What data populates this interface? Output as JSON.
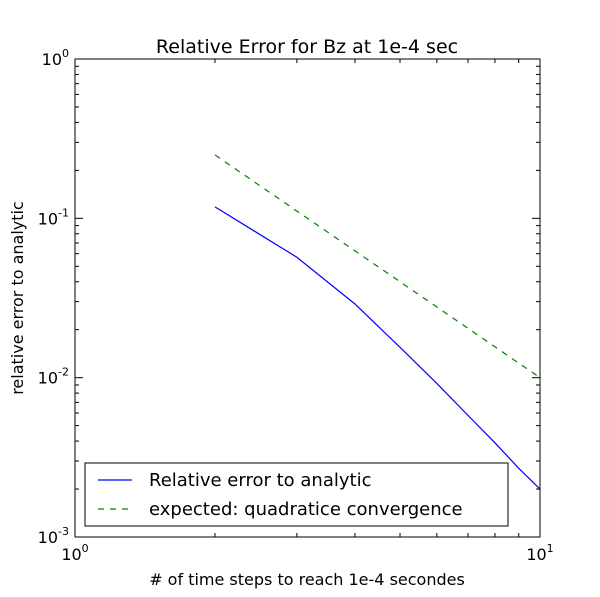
{
  "chart_data": {
    "type": "line",
    "title": "Relative Error for Bz at 1e-4 sec",
    "xlabel": "# of time steps to reach 1e-4 secondes",
    "ylabel": "relative error to analytic",
    "xscale": "log",
    "yscale": "log",
    "xlim": [
      1,
      10
    ],
    "ylim": [
      0.001,
      1
    ],
    "x_ticks": [
      {
        "value": 1,
        "base": "10",
        "exp": "0"
      },
      {
        "value": 10,
        "base": "10",
        "exp": "1"
      }
    ],
    "y_ticks": [
      {
        "value": 0.001,
        "base": "10",
        "exp": "-3"
      },
      {
        "value": 0.01,
        "base": "10",
        "exp": "-2"
      },
      {
        "value": 0.1,
        "base": "10",
        "exp": "-1"
      },
      {
        "value": 1,
        "base": "10",
        "exp": "0"
      }
    ],
    "grid": false,
    "legend_position": "lower-left",
    "series": [
      {
        "name": "Relative error to analytic",
        "color": "#0000ff",
        "style": "solid",
        "x": [
          2,
          3,
          4,
          5,
          6,
          7,
          8,
          9,
          10
        ],
        "y": [
          0.118,
          0.057,
          0.029,
          0.0155,
          0.0092,
          0.0058,
          0.0039,
          0.0027,
          0.002
        ]
      },
      {
        "name": "expected: quadratice convergence",
        "color": "#008000",
        "style": "dashed",
        "x": [
          2,
          10
        ],
        "y": [
          0.25,
          0.01
        ]
      }
    ]
  }
}
